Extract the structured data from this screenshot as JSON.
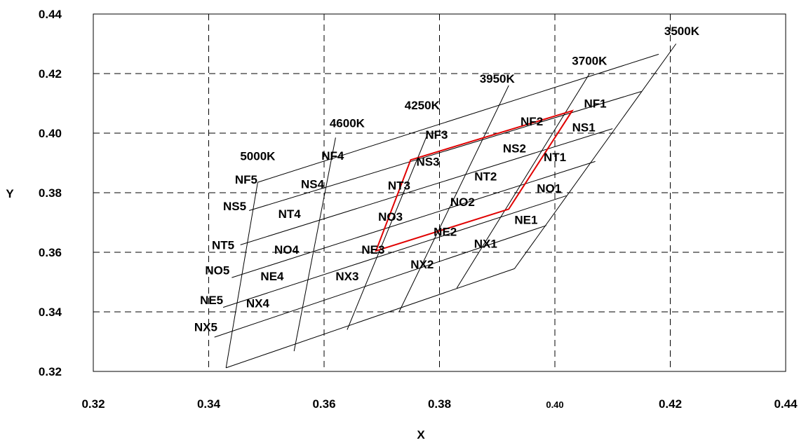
{
  "chart_data": {
    "type": "line",
    "title": "",
    "xlabel": "X",
    "ylabel": "Y",
    "xlim": [
      0.32,
      0.44
    ],
    "ylim": [
      0.32,
      0.44
    ],
    "grid": true,
    "x_ticks": [
      {
        "value": 0.32,
        "label": "0.32"
      },
      {
        "value": 0.34,
        "label": "0.34"
      },
      {
        "value": 0.36,
        "label": "0.36"
      },
      {
        "value": 0.38,
        "label": "0.38"
      },
      {
        "value": 0.4,
        "label": "0.40",
        "small": true
      },
      {
        "value": 0.42,
        "label": "0.42"
      },
      {
        "value": 0.44,
        "label": "0.44"
      }
    ],
    "y_ticks": [
      {
        "value": 0.32,
        "label": "0.32"
      },
      {
        "value": 0.34,
        "label": "0.34"
      },
      {
        "value": 0.36,
        "label": "0.36"
      },
      {
        "value": 0.38,
        "label": "0.38"
      },
      {
        "value": 0.4,
        "label": "0.40"
      },
      {
        "value": 0.42,
        "label": "0.42"
      },
      {
        "value": 0.44,
        "label": "0.44"
      }
    ],
    "isotemperature_lines": [
      {
        "name": "5000K",
        "points": [
          [
            0.343,
            0.3212
          ],
          [
            0.3485,
            0.3835
          ]
        ],
        "label_at": [
          0.3485,
          0.391
        ]
      },
      {
        "name": "4600K",
        "points": [
          [
            0.3548,
            0.3268
          ],
          [
            0.362,
            0.3985
          ]
        ],
        "label_at": [
          0.364,
          0.402
        ]
      },
      {
        "name": "4250K",
        "points": [
          [
            0.364,
            0.334
          ],
          [
            0.378,
            0.4
          ]
        ],
        "label_at": [
          0.377,
          0.408
        ]
      },
      {
        "name": "3950K",
        "points": [
          [
            0.373,
            0.34
          ],
          [
            0.392,
            0.416
          ]
        ],
        "label_at": [
          0.39,
          0.417
        ]
      },
      {
        "name": "3700K",
        "points": [
          [
            0.383,
            0.348
          ],
          [
            0.406,
            0.42
          ]
        ],
        "label_at": [
          0.406,
          0.423
        ]
      },
      {
        "name": "3500K",
        "points": [
          [
            0.393,
            0.3545
          ],
          [
            0.421,
            0.43
          ]
        ],
        "label_at": [
          0.422,
          0.433
        ]
      }
    ],
    "duv_lines": [
      {
        "points": [
          [
            0.3485,
            0.3835
          ],
          [
            0.418,
            0.4265
          ]
        ]
      },
      {
        "points": [
          [
            0.347,
            0.374
          ],
          [
            0.415,
            0.414
          ]
        ]
      },
      {
        "points": [
          [
            0.3455,
            0.3625
          ],
          [
            0.41,
            0.4015
          ]
        ]
      },
      {
        "points": [
          [
            0.344,
            0.3515
          ],
          [
            0.407,
            0.3905
          ]
        ]
      },
      {
        "points": [
          [
            0.3425,
            0.3415
          ],
          [
            0.402,
            0.379
          ]
        ]
      },
      {
        "points": [
          [
            0.341,
            0.3315
          ],
          [
            0.3985,
            0.369
          ]
        ]
      },
      {
        "points": [
          [
            0.343,
            0.3212
          ],
          [
            0.393,
            0.3545
          ]
        ]
      }
    ],
    "target_quadrangle": {
      "points": [
        [
          0.375,
          0.391
        ],
        [
          0.403,
          0.4075
        ],
        [
          0.392,
          0.3745
        ],
        [
          0.369,
          0.3605
        ]
      ],
      "color": "#e00000"
    },
    "cell_labels": [
      {
        "text": "NF1",
        "at": [
          0.407,
          0.41
        ]
      },
      {
        "text": "NS1",
        "at": [
          0.405,
          0.402
        ]
      },
      {
        "text": "NT1",
        "at": [
          0.4,
          0.392
        ]
      },
      {
        "text": "NO1",
        "at": [
          0.399,
          0.3815
        ]
      },
      {
        "text": "NE1",
        "at": [
          0.395,
          0.371
        ]
      },
      {
        "text": "NX1",
        "at": [
          0.388,
          0.363
        ]
      },
      {
        "text": "NF2",
        "at": [
          0.396,
          0.404
        ]
      },
      {
        "text": "NS2",
        "at": [
          0.393,
          0.395
        ]
      },
      {
        "text": "NT2",
        "at": [
          0.388,
          0.3855
        ]
      },
      {
        "text": "NO2",
        "at": [
          0.384,
          0.377
        ]
      },
      {
        "text": "NE2",
        "at": [
          0.381,
          0.367
        ]
      },
      {
        "text": "NX2",
        "at": [
          0.377,
          0.356
        ]
      },
      {
        "text": "NF3",
        "at": [
          0.3795,
          0.3995
        ]
      },
      {
        "text": "NS3",
        "at": [
          0.378,
          0.3905
        ]
      },
      {
        "text": "NT3",
        "at": [
          0.373,
          0.3825
        ]
      },
      {
        "text": "NO3",
        "at": [
          0.3715,
          0.372
        ]
      },
      {
        "text": "NE3",
        "at": [
          0.3685,
          0.361
        ]
      },
      {
        "text": "NX3",
        "at": [
          0.364,
          0.352
        ]
      },
      {
        "text": "NF4",
        "at": [
          0.3615,
          0.3925
        ]
      },
      {
        "text": "NS4",
        "at": [
          0.358,
          0.383
        ]
      },
      {
        "text": "NT4",
        "at": [
          0.354,
          0.373
        ]
      },
      {
        "text": "NO4",
        "at": [
          0.3535,
          0.361
        ]
      },
      {
        "text": "NE4",
        "at": [
          0.351,
          0.352
        ]
      },
      {
        "text": "NX4",
        "at": [
          0.3485,
          0.343
        ]
      },
      {
        "text": "NF5",
        "at": [
          0.3465,
          0.3845
        ]
      },
      {
        "text": "NS5",
        "at": [
          0.3445,
          0.3755
        ]
      },
      {
        "text": "NT5",
        "at": [
          0.3425,
          0.3625
        ]
      },
      {
        "text": "NO5",
        "at": [
          0.3415,
          0.354
        ]
      },
      {
        "text": "NE5",
        "at": [
          0.3405,
          0.344
        ]
      },
      {
        "text": "NX5",
        "at": [
          0.3395,
          0.335
        ]
      }
    ]
  }
}
